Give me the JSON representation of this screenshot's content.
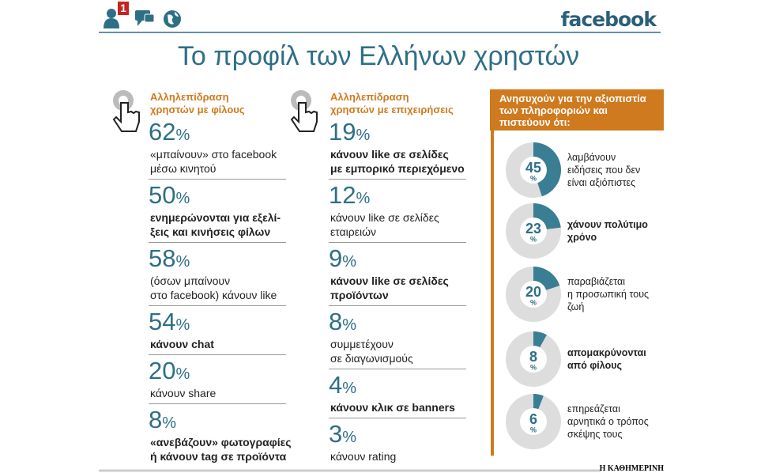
{
  "header": {
    "notification_count": 1,
    "brand": "facebook",
    "title": "Το προφίλ των Ελλήνων χρηστών"
  },
  "columns": [
    {
      "heading": [
        "Αλληλεπίδραση",
        "χρηστών με φίλους"
      ],
      "items": [
        {
          "value": 62,
          "unit": "%",
          "lines": [
            "«μπαίνουν» στο facebook",
            "μέσω κινητού"
          ],
          "bold": false
        },
        {
          "value": 50,
          "unit": "%",
          "lines": [
            "ενημερώνονται για εξελί-",
            "ξεις και κινήσεις φίλων"
          ],
          "bold": true
        },
        {
          "value": 58,
          "unit": "%",
          "lines": [
            "(όσων μπαίνουν",
            "στο facebook) κάνουν like"
          ],
          "bold": false
        },
        {
          "value": 54,
          "unit": "%",
          "lines": [
            "κάνουν chat"
          ],
          "bold": true
        },
        {
          "value": 20,
          "unit": "%",
          "lines": [
            "κάνουν share"
          ],
          "bold": false
        },
        {
          "value": 8,
          "unit": "%",
          "lines": [
            "«ανεβάζουν» φωτογραφίες",
            "ή κάνουν tag σε προϊόντα"
          ],
          "bold": true
        }
      ]
    },
    {
      "heading": [
        "Αλληλεπίδραση",
        "χρηστών με επιχειρήσεις"
      ],
      "items": [
        {
          "value": 19,
          "unit": "%",
          "lines": [
            "κάνουν like σε σελίδες",
            "με εμπορικό περιεχόμενο"
          ],
          "bold": true
        },
        {
          "value": 12,
          "unit": "%",
          "lines": [
            "κάνουν like σε σελίδες",
            "εταιρειών"
          ],
          "bold": false
        },
        {
          "value": 9,
          "unit": "%",
          "lines": [
            "κάνουν like σε σελίδες",
            "προϊόντων"
          ],
          "bold": true
        },
        {
          "value": 8,
          "unit": "%",
          "lines": [
            "συμμετέχουν",
            "σε διαγωνισμούς"
          ],
          "bold": false
        },
        {
          "value": 4,
          "unit": "%",
          "lines": [
            "κάνουν κλικ σε banners"
          ],
          "bold": true
        },
        {
          "value": 3,
          "unit": "%",
          "lines": [
            "κάνουν rating"
          ],
          "bold": false
        }
      ]
    }
  ],
  "concerns": {
    "heading": [
      "Ανησυχούν για την αξιοπιστία",
      "των πληροφοριών και",
      "πιστεύουν ότι:"
    ],
    "items": [
      {
        "value": 45,
        "unit": "%",
        "lines": [
          "λαμβάνουν",
          "ειδήσεις που δεν",
          "είναι αξιόπιστες"
        ],
        "bold": false
      },
      {
        "value": 23,
        "unit": "%",
        "lines": [
          "χάνουν πολύτιμο",
          "χρόνο"
        ],
        "bold": true
      },
      {
        "value": 20,
        "unit": "%",
        "lines": [
          "παραβιάζεται",
          "η προσωπική τους",
          "ζωή"
        ],
        "bold": false
      },
      {
        "value": 8,
        "unit": "%",
        "lines": [
          "απομακρύνονται",
          "από φίλους"
        ],
        "bold": true
      },
      {
        "value": 6,
        "unit": "%",
        "lines": [
          "επηρεάζεται",
          "αρνητικά ο τρόπος",
          "σκέψης τους"
        ],
        "bold": false
      }
    ]
  },
  "footer": {
    "source": "Η ΚΑΘΗΜΕΡΙΝΗ"
  }
}
